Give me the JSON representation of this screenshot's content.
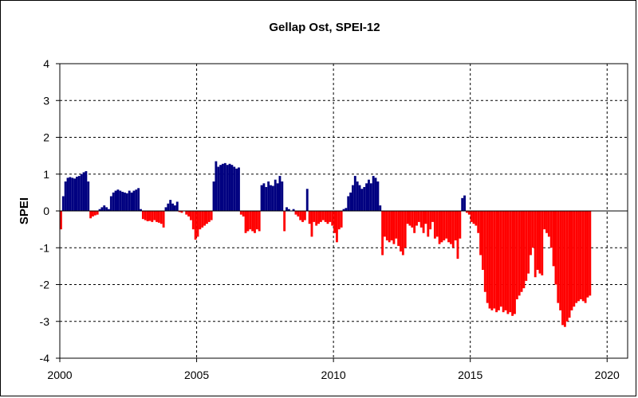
{
  "chart_data": {
    "type": "bar",
    "title": "Gellap Ost, SPEI-12",
    "xlabel": "",
    "ylabel": "SPEI",
    "xlim": [
      2000,
      2020.75
    ],
    "ylim": [
      -4,
      4
    ],
    "x_ticks": [
      "2000",
      "2005",
      "2010",
      "2015",
      "2020"
    ],
    "y_ticks": [
      "4",
      "3",
      "2",
      "1",
      "0",
      "-1",
      "-2",
      "-3",
      "-4"
    ],
    "grid": true,
    "legend": "none",
    "positive_color": "#000080",
    "negative_color": "#ff0000",
    "time_resolution": "monthly",
    "series_start": "2000-01",
    "values": [
      -0.5,
      0.4,
      0.8,
      0.9,
      0.92,
      0.9,
      0.88,
      0.93,
      0.95,
      1.0,
      1.05,
      1.08,
      0.8,
      -0.2,
      -0.15,
      -0.12,
      -0.1,
      0.05,
      0.1,
      0.15,
      0.1,
      0.05,
      0.4,
      0.5,
      0.55,
      0.58,
      0.55,
      0.52,
      0.5,
      0.48,
      0.55,
      0.5,
      0.55,
      0.58,
      0.62,
      0.05,
      -0.22,
      -0.25,
      -0.28,
      -0.27,
      -0.3,
      -0.25,
      -0.3,
      -0.32,
      -0.35,
      -0.45,
      0.1,
      0.2,
      0.3,
      0.2,
      0.15,
      0.25,
      -0.03,
      -0.05,
      0.0,
      -0.1,
      -0.15,
      -0.25,
      -0.5,
      -0.78,
      -0.7,
      -0.5,
      -0.45,
      -0.4,
      -0.35,
      -0.3,
      -0.25,
      0.8,
      1.35,
      1.2,
      1.25,
      1.28,
      1.3,
      1.25,
      1.28,
      1.25,
      1.2,
      1.15,
      1.18,
      -0.1,
      -0.15,
      -0.6,
      -0.55,
      -0.5,
      -0.55,
      -0.6,
      -0.5,
      -0.55,
      0.7,
      0.75,
      0.65,
      0.8,
      0.7,
      0.68,
      0.85,
      0.75,
      0.95,
      0.8,
      -0.55,
      0.1,
      0.05,
      0.0,
      0.05,
      -0.1,
      -0.15,
      -0.25,
      -0.3,
      -0.25,
      0.6,
      -0.35,
      -0.7,
      -0.3,
      -0.4,
      -0.35,
      -0.3,
      -0.25,
      -0.3,
      -0.35,
      -0.3,
      -0.4,
      -0.6,
      -0.85,
      -0.5,
      -0.45,
      0.05,
      0.08,
      0.4,
      0.5,
      0.7,
      0.95,
      0.8,
      0.7,
      0.6,
      0.65,
      0.75,
      0.85,
      0.75,
      0.95,
      0.9,
      0.8,
      0.15,
      -1.2,
      -0.7,
      -0.8,
      -0.85,
      -0.8,
      -0.9,
      -0.75,
      -0.95,
      -1.1,
      -1.2,
      -1.0,
      -0.35,
      -0.4,
      -0.45,
      -0.6,
      -0.4,
      -0.3,
      -0.45,
      -0.6,
      -0.35,
      -0.7,
      -0.5,
      -0.3,
      -0.75,
      -0.7,
      -0.9,
      -0.85,
      -0.8,
      -0.75,
      -0.85,
      -0.9,
      -1.0,
      -0.8,
      -1.3,
      -0.75,
      0.35,
      0.42,
      -0.05,
      -0.1,
      -0.3,
      -0.35,
      -0.4,
      -0.6,
      -1.2,
      -1.6,
      -2.2,
      -2.5,
      -2.65,
      -2.7,
      -2.65,
      -2.75,
      -2.7,
      -2.6,
      -2.75,
      -2.7,
      -2.8,
      -2.75,
      -2.85,
      -2.8,
      -2.4,
      -2.3,
      -2.2,
      -2.1,
      -1.9,
      -1.7,
      -1.2,
      -1.0,
      -1.8,
      -1.6,
      -1.7,
      -1.75,
      -0.5,
      -0.6,
      -0.7,
      -1.0,
      -1.5,
      -2.0,
      -2.5,
      -2.7,
      -3.1,
      -3.15,
      -3.0,
      -2.9,
      -2.7,
      -2.6,
      -2.5,
      -2.45,
      -2.4,
      -2.45,
      -2.5,
      -2.35,
      -2.3
    ]
  }
}
